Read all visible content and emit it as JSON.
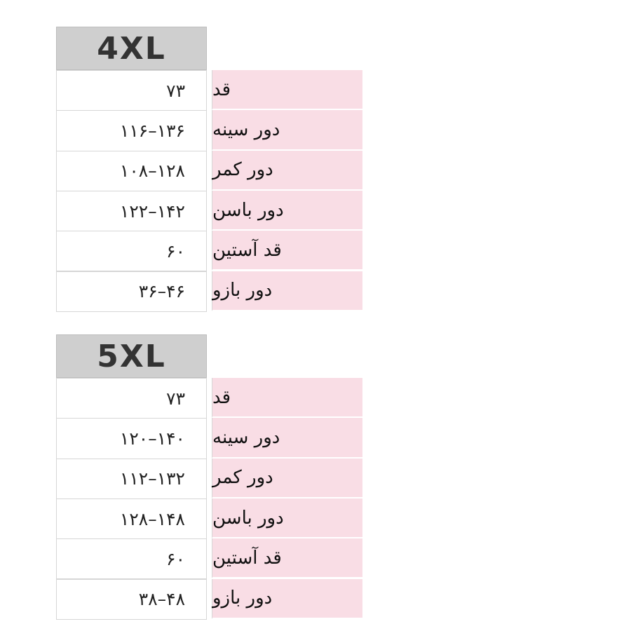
{
  "tables": [
    {
      "size": "4XL",
      "rows": [
        {
          "label": "قد",
          "value": "۷۳"
        },
        {
          "label": "دور سینه",
          "value": "۱۱۶–۱۳۶"
        },
        {
          "label": "دور کمر",
          "value": "۱۰۸–۱۲۸"
        },
        {
          "label": "دور باسن",
          "value": "۱۲۲–۱۴۲"
        },
        {
          "label": "قد آستین",
          "value": "۶۰"
        },
        {
          "label": "دور بازو",
          "value": "۳۶–۴۶"
        }
      ]
    },
    {
      "size": "5XL",
      "rows": [
        {
          "label": "قد",
          "value": "۷۳"
        },
        {
          "label": "دور سینه",
          "value": "۱۲۰–۱۴۰"
        },
        {
          "label": "دور کمر",
          "value": "۱۱۲–۱۳۲"
        },
        {
          "label": "دور باسن",
          "value": "۱۲۸–۱۴۸"
        },
        {
          "label": "قد آستین",
          "value": "۶۰"
        },
        {
          "label": "دور بازو",
          "value": "۳۸–۴۸"
        }
      ]
    }
  ]
}
